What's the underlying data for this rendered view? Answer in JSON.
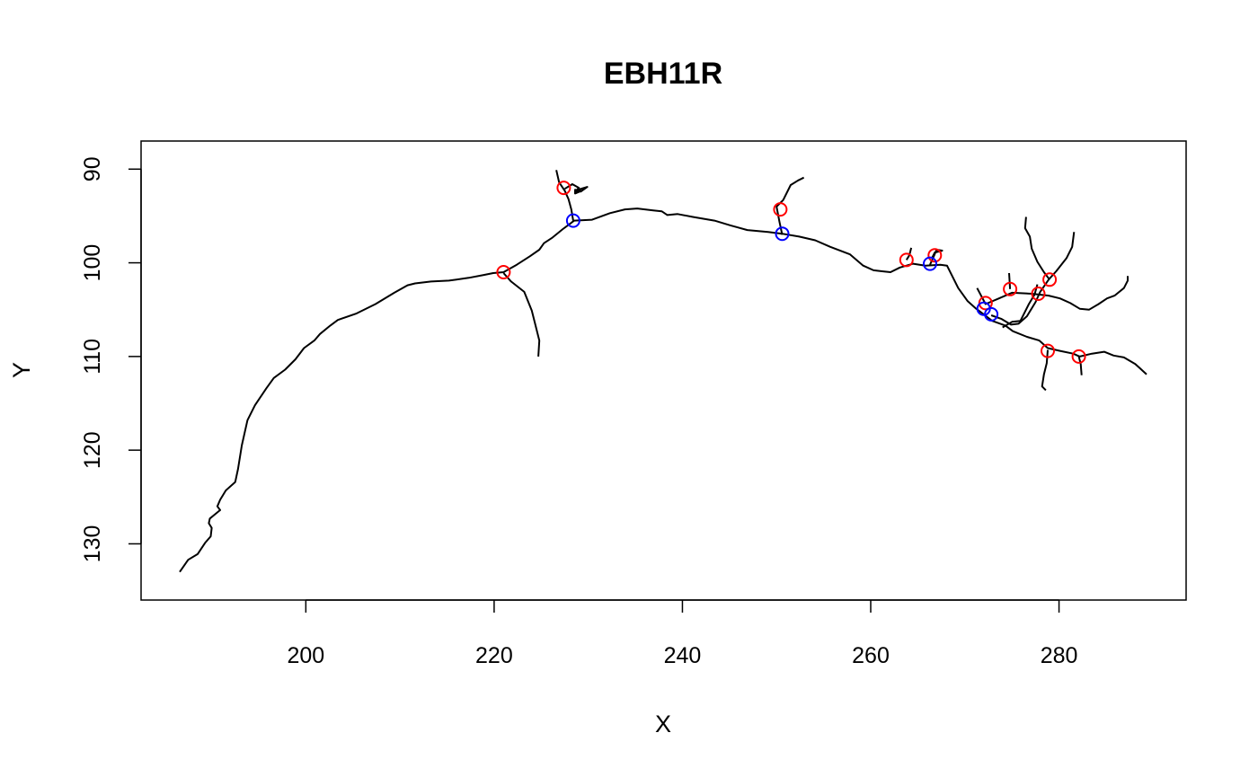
{
  "chart_data": {
    "type": "scatter",
    "title": "EBH11R",
    "xlabel": "X",
    "ylabel": "Y",
    "xlim": [
      182.5,
      293.5
    ],
    "ylim": [
      87,
      136
    ],
    "y_inverted": true,
    "x_ticks": [
      200,
      220,
      240,
      260,
      280
    ],
    "y_ticks": [
      90,
      100,
      110,
      120,
      130
    ],
    "colors": {
      "line": "#000000",
      "red_points": "#ff0000",
      "blue_points": "#0000ff"
    },
    "series": [
      {
        "type": "line",
        "x": [
          186.6,
          187.5,
          188.5,
          189.3,
          189.9,
          190.0,
          189.7,
          189.8,
          190.4,
          190.9,
          190.6,
          190.9,
          191.5,
          192.5,
          192.8,
          193.2,
          193.8,
          194.6,
          195.8,
          196.6,
          197.8,
          198.9,
          199.8,
          200.9,
          201.5,
          202.6,
          203.4,
          205.4,
          207.4,
          209.4,
          210.8,
          211.6,
          213.3,
          215.2,
          217.3,
          218.9,
          219.9,
          221.0,
          222.4,
          223.8,
          224.8,
          225.3,
          226.2,
          227.3,
          228.5,
          230.4,
          232.3,
          233.9,
          235.2,
          236.9,
          237.8,
          238.4,
          239.5,
          241.1,
          243.4,
          245.1,
          246.9,
          249.1,
          250.6,
          252.4,
          254.1,
          255.7,
          257.8,
          259.2,
          260.3,
          261.2,
          262.1,
          263.1,
          264.5,
          265.8,
          267.4,
          268.1,
          269.3,
          270.3,
          271.2,
          272.0,
          272.9,
          274.3,
          275.1,
          276.6,
          277.9,
          278.8,
          280.1,
          281.5,
          282.2,
          283.5,
          284.8,
          285.8,
          286.9,
          288.1,
          289.3
        ],
        "y": [
          133.0,
          131.7,
          131.1,
          129.9,
          129.2,
          128.3,
          127.8,
          127.3,
          126.8,
          126.4,
          126.0,
          125.3,
          124.3,
          123.4,
          122.0,
          119.5,
          116.8,
          115.2,
          113.4,
          112.3,
          111.4,
          110.3,
          109.1,
          108.3,
          107.6,
          106.7,
          106.1,
          105.4,
          104.4,
          103.2,
          102.4,
          102.2,
          102.0,
          101.9,
          101.6,
          101.3,
          101.1,
          101.0,
          100.2,
          99.3,
          98.6,
          97.9,
          97.3,
          96.4,
          95.5,
          95.4,
          94.7,
          94.3,
          94.2,
          94.4,
          94.5,
          94.9,
          94.8,
          95.1,
          95.5,
          96.0,
          96.5,
          96.7,
          96.9,
          97.2,
          97.6,
          98.3,
          99.1,
          100.3,
          100.8,
          100.9,
          101.0,
          100.5,
          100.1,
          100.3,
          100.2,
          100.3,
          102.7,
          104.1,
          104.9,
          105.5,
          106.2,
          106.7,
          107.3,
          107.9,
          108.3,
          109.1,
          109.4,
          109.7,
          110.0,
          109.7,
          109.5,
          109.9,
          110.1,
          110.8,
          111.9
        ]
      },
      {
        "type": "line",
        "x": [
          221.0,
          221.8,
          223.2,
          224.0,
          224.4,
          224.8,
          224.7
        ],
        "y": [
          101.1,
          102.0,
          103.1,
          105.1,
          106.7,
          108.3,
          110.0
        ]
      },
      {
        "type": "line",
        "x": [
          228.4,
          228.2,
          227.9,
          227.5,
          226.9,
          226.6
        ],
        "y": [
          95.5,
          94.3,
          93.2,
          92.3,
          91.4,
          90.1
        ]
      },
      {
        "type": "line",
        "x": [
          227.5,
          228.3,
          229.0,
          228.6,
          229.3,
          228.6,
          228.6,
          229.2,
          229.9,
          228.9
        ],
        "y": [
          92.1,
          91.6,
          92.0,
          92.4,
          92.3,
          92.6,
          92.2,
          92.4,
          91.9,
          92.2
        ]
      },
      {
        "type": "line",
        "x": [
          250.6,
          250.3,
          250.0,
          250.7,
          251.5,
          252.3,
          252.9
        ],
        "y": [
          97.0,
          95.6,
          94.0,
          93.3,
          91.7,
          91.2,
          90.9
        ]
      },
      {
        "type": "line",
        "x": [
          263.8,
          264.1,
          264.3
        ],
        "y": [
          99.7,
          99.2,
          98.4
        ]
      },
      {
        "type": "line",
        "x": [
          266.3,
          266.7,
          267.0,
          267.6,
          266.8,
          266.5
        ],
        "y": [
          100.2,
          99.3,
          98.6,
          98.7,
          98.9,
          99.5
        ]
      },
      {
        "type": "line",
        "x": [
          271.3,
          272.2,
          273.4,
          275.0,
          277.1,
          278.9,
          280.1,
          281.2,
          282.2,
          283.2,
          284.2,
          285.1,
          285.9,
          286.9,
          287.3,
          287.3
        ],
        "y": [
          102.7,
          104.4,
          103.9,
          103.2,
          103.3,
          103.5,
          103.8,
          104.3,
          104.9,
          105.0,
          104.4,
          103.8,
          103.5,
          102.7,
          101.9,
          101.4
        ]
      },
      {
        "type": "line",
        "x": [
          274.8,
          274.7
        ],
        "y": [
          102.8,
          101.1
        ]
      },
      {
        "type": "line",
        "x": [
          272.8,
          273.9,
          274.9,
          275.7,
          276.6,
          277.5,
          278.0,
          278.9,
          279.7,
          280.8,
          281.4,
          281.6
        ],
        "y": [
          105.6,
          106.0,
          106.6,
          106.5,
          105.7,
          104.2,
          103.1,
          101.8,
          100.9,
          99.5,
          98.3,
          96.7
        ]
      },
      {
        "type": "line",
        "x": [
          274.0,
          275.0,
          275.9,
          276.8,
          277.4,
          277.7
        ],
        "y": [
          106.9,
          106.3,
          106.2,
          104.4,
          103.4,
          102.3
        ]
      },
      {
        "type": "line",
        "x": [
          279.0,
          278.4,
          277.7,
          277.1,
          276.9,
          276.4,
          276.5
        ],
        "y": [
          101.8,
          101.0,
          99.9,
          98.5,
          97.2,
          96.3,
          95.1
        ]
      },
      {
        "type": "line",
        "x": [
          278.8,
          278.7,
          278.4,
          278.2,
          278.6
        ],
        "y": [
          109.3,
          110.7,
          111.9,
          113.2,
          113.6
        ]
      },
      {
        "type": "line",
        "x": [
          282.1,
          282.3,
          282.4
        ],
        "y": [
          110.0,
          110.8,
          112.0
        ]
      },
      {
        "type": "points",
        "color": "red",
        "x": [
          221.0,
          227.4,
          250.4,
          263.8,
          266.8,
          272.2,
          274.8,
          277.8,
          279.0,
          278.8,
          282.1
        ],
        "y": [
          101.0,
          92.0,
          94.3,
          99.7,
          99.2,
          104.3,
          102.8,
          103.3,
          101.8,
          109.4,
          110.0
        ]
      },
      {
        "type": "points",
        "color": "blue",
        "x": [
          228.4,
          250.6,
          266.3,
          272.0,
          272.8
        ],
        "y": [
          95.5,
          96.9,
          100.1,
          104.9,
          105.5
        ]
      }
    ]
  }
}
